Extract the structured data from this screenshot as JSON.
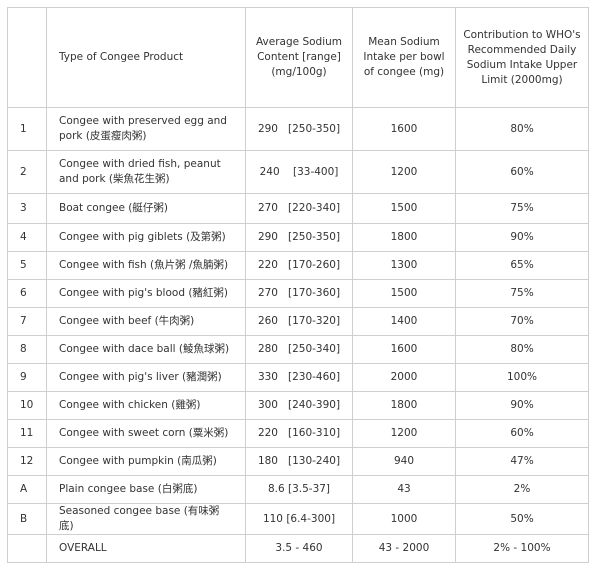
{
  "table": {
    "headers": [
      "Type of Congee Product",
      "Average Sodium Content [range] (mg/100g)",
      "Mean Sodium Intake per bowl of congee (mg)",
      "Contribution to WHO's Recommended Daily Sodium Intake Upper Limit (2000mg)"
    ],
    "rows": [
      [
        "1",
        "Congee with preserved egg and pork (皮蛋瘦肉粥)",
        "290   [250-350]",
        "1600",
        "80%"
      ],
      [
        "2",
        "Congee with dried fish, peanut and pork (柴魚花生粥)",
        "240    [33-400]",
        "1200",
        "60%"
      ],
      [
        "3",
        "Boat congee (艇仔粥)",
        "270   [220-340]",
        "1500",
        "75%"
      ],
      [
        "4",
        "Congee with pig giblets (及第粥)",
        "290   [250-350]",
        "1800",
        "90%"
      ],
      [
        "5",
        "Congee with fish (魚片粥 /魚腩粥)",
        "220   [170-260]",
        "1300",
        "65%"
      ],
      [
        "6",
        "Congee with pig's blood (豬紅粥)",
        "270   [170-360]",
        "1500",
        "75%"
      ],
      [
        "7",
        "Congee with beef (牛肉粥)",
        "260   [170-320]",
        "1400",
        "70%"
      ],
      [
        "8",
        "Congee with dace ball (鯪魚球粥)",
        "280   [250-340]",
        "1600",
        "80%"
      ],
      [
        "9",
        "Congee with pig's liver (豬潤粥)",
        "330   [230-460]",
        "2000",
        "100%"
      ],
      [
        "10",
        "Congee with chicken (雞粥)",
        "300   [240-390]",
        "1800",
        "90%"
      ],
      [
        "11",
        "Congee with sweet corn (粟米粥)",
        "220   [160-310]",
        "1200",
        "60%"
      ],
      [
        "12",
        "Congee with pumpkin (南瓜粥)",
        "180   [130-240]",
        "940",
        "47%"
      ],
      [
        "A",
        "Plain congee base (白粥底)",
        "8.6 [3.5-37]",
        "43",
        "2%"
      ],
      [
        "B",
        "Seasoned congee base (有味粥底)",
        "110 [6.4-300]",
        "1000",
        "50%"
      ],
      [
        "",
        "OVERALL",
        "3.5 - 460",
        "43 - 2000",
        "2% - 100%"
      ]
    ]
  }
}
